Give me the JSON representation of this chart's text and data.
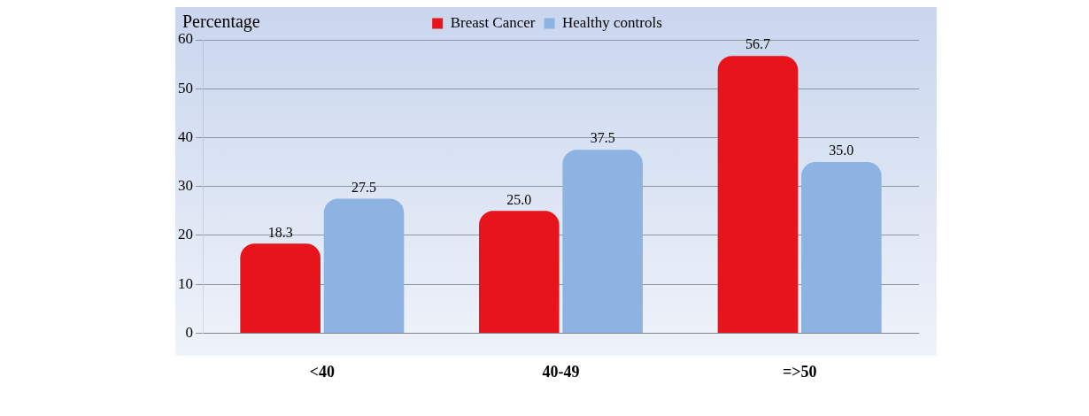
{
  "chart_data": {
    "type": "bar",
    "ylabel": "Percentage",
    "categories": [
      "<40",
      "40-49",
      "=>50"
    ],
    "series": [
      {
        "name": "Breast Cancer",
        "color": "#e8141b",
        "values": [
          18.3,
          25.0,
          56.7
        ],
        "value_labels": [
          "18.3",
          "25.0",
          "56.7"
        ]
      },
      {
        "name": "Healthy controls",
        "color": "#8db3e2",
        "values": [
          27.5,
          37.5,
          35.0
        ],
        "value_labels": [
          "27.5",
          "37.5",
          "35.0"
        ]
      }
    ],
    "ylim": [
      0,
      60
    ],
    "yticks": [
      0,
      10,
      20,
      30,
      40,
      50,
      60
    ],
    "grid": "y",
    "legend": "top"
  }
}
